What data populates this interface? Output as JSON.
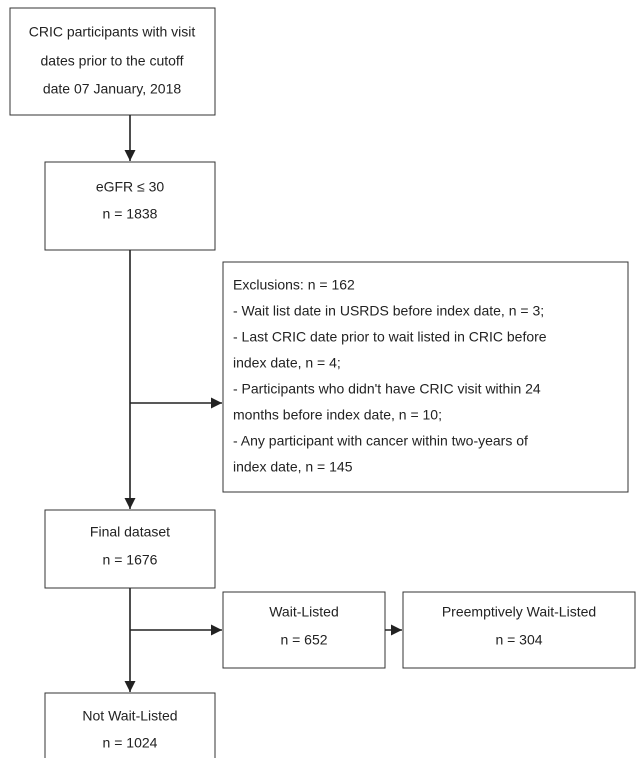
{
  "nodes": [
    {
      "lines": [
        "CRIC participants with visit",
        "dates prior to the cutoff",
        "date 07 January, 2018"
      ]
    },
    {
      "lines": [
        "eGFR ≤ 30",
        "n = 1838"
      ]
    },
    {
      "lines": [
        "Exclusions: n = 162",
        "- Wait list date in USRDS before index date, n = 3;",
        "- Last CRIC date prior to wait listed in CRIC before",
        "index date, n = 4;",
        "- Participants who didn't have CRIC visit within 24",
        "months before index date, n = 10;",
        "- Any participant with cancer within two-years of",
        "index date, n = 145"
      ]
    },
    {
      "lines": [
        "Final dataset",
        "n = 1676"
      ]
    },
    {
      "lines": [
        "Wait-Listed",
        "n = 652"
      ]
    },
    {
      "lines": [
        "Preemptively Wait-Listed",
        "n = 304"
      ]
    },
    {
      "lines": [
        "Not Wait-Listed",
        "n = 1024"
      ]
    }
  ]
}
